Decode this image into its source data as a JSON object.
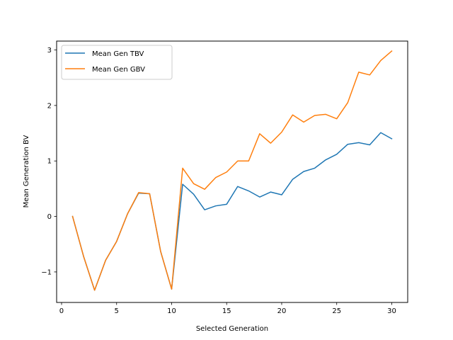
{
  "chart_data": {
    "type": "line",
    "title": "",
    "xlabel": "Selected Generation",
    "ylabel": "Mean Generation BV",
    "xlim": [
      -0.45,
      31.45
    ],
    "ylim": [
      -1.55,
      3.16
    ],
    "xticks": [
      0,
      5,
      10,
      15,
      20,
      25,
      30
    ],
    "yticks": [
      -1,
      0,
      1,
      2,
      3
    ],
    "xtick_labels": [
      "0",
      "5",
      "10",
      "15",
      "20",
      "25",
      "30"
    ],
    "ytick_labels": [
      "−1",
      "0",
      "1",
      "2",
      "3"
    ],
    "grid": false,
    "legend_position": "upper-left",
    "x": [
      1,
      2,
      3,
      4,
      5,
      6,
      7,
      8,
      9,
      10,
      11,
      12,
      13,
      14,
      15,
      16,
      17,
      18,
      19,
      20,
      21,
      22,
      23,
      24,
      25,
      26,
      27,
      28,
      29,
      30
    ],
    "series": [
      {
        "name": "Mean Gen TBV",
        "color": "#1f77b4",
        "values": [
          0.0,
          -0.72,
          -1.33,
          -0.79,
          -0.45,
          0.05,
          0.42,
          0.41,
          -0.63,
          -1.31,
          0.58,
          0.4,
          0.12,
          0.19,
          0.22,
          0.54,
          0.46,
          0.35,
          0.44,
          0.39,
          0.67,
          0.81,
          0.87,
          1.02,
          1.12,
          1.3,
          1.33,
          1.29,
          1.51,
          1.4
        ]
      },
      {
        "name": "Mean Gen GBV",
        "color": "#ff7f0e",
        "values": [
          0.0,
          -0.72,
          -1.33,
          -0.79,
          -0.45,
          0.05,
          0.43,
          0.41,
          -0.63,
          -1.31,
          0.87,
          0.59,
          0.49,
          0.7,
          0.8,
          1.0,
          1.0,
          1.49,
          1.32,
          1.52,
          1.83,
          1.7,
          1.82,
          1.84,
          1.76,
          2.05,
          2.6,
          2.55,
          2.81,
          2.98
        ]
      }
    ]
  }
}
